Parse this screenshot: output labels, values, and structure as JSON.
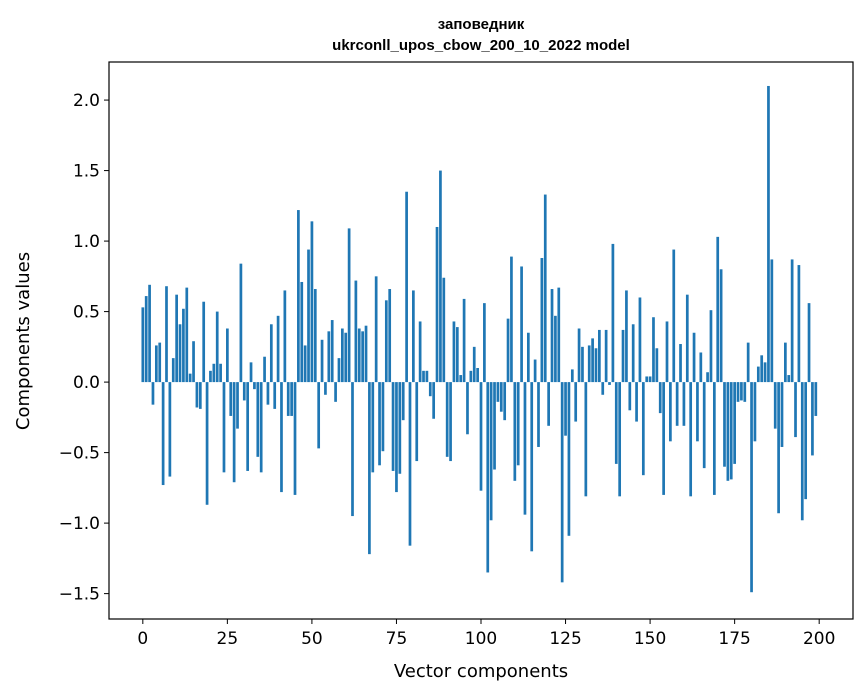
{
  "chart_data": {
    "type": "bar",
    "title": "заповедник",
    "subtitle": "ukrconll_upos_cbow_200_10_2022 model",
    "xlabel": "Vector components",
    "ylabel": "Components values",
    "xlim": [
      -10,
      210
    ],
    "ylim": [
      -1.68,
      2.27
    ],
    "xticks": [
      0,
      25,
      50,
      75,
      100,
      125,
      150,
      175,
      200
    ],
    "yticks": [
      -1.5,
      -1.0,
      -0.5,
      0.0,
      0.5,
      1.0,
      1.5,
      2.0
    ],
    "xtick_labels": [
      "0",
      "25",
      "50",
      "75",
      "100",
      "125",
      "150",
      "175",
      "200"
    ],
    "ytick_labels": [
      "−1.5",
      "−1.0",
      "−0.5",
      "0.0",
      "0.5",
      "1.0",
      "1.5",
      "2.0"
    ],
    "bar_color": "#1f77b4",
    "values": [
      0.53,
      0.61,
      0.69,
      -0.16,
      0.26,
      0.28,
      -0.73,
      0.68,
      -0.67,
      0.17,
      0.62,
      0.41,
      0.52,
      0.67,
      0.06,
      0.29,
      -0.18,
      -0.19,
      0.57,
      -0.87,
      0.08,
      0.13,
      0.5,
      0.13,
      -0.64,
      0.38,
      -0.24,
      -0.71,
      -0.33,
      0.84,
      -0.13,
      -0.63,
      0.14,
      -0.05,
      -0.53,
      -0.64,
      0.18,
      -0.16,
      0.41,
      -0.19,
      0.47,
      -0.78,
      0.65,
      -0.24,
      -0.24,
      -0.8,
      1.22,
      0.71,
      0.26,
      0.94,
      1.14,
      0.66,
      -0.47,
      0.3,
      -0.09,
      0.36,
      0.44,
      -0.14,
      0.17,
      0.38,
      0.35,
      1.09,
      -0.95,
      0.72,
      0.38,
      0.36,
      0.4,
      -1.22,
      -0.64,
      0.75,
      -0.59,
      -0.49,
      0.58,
      0.66,
      -0.63,
      -0.78,
      -0.65,
      -0.27,
      1.35,
      -1.16,
      0.65,
      -0.56,
      0.43,
      0.08,
      0.08,
      -0.1,
      -0.26,
      1.1,
      1.5,
      0.74,
      -0.53,
      -0.56,
      0.43,
      0.39,
      0.05,
      0.59,
      -0.37,
      0.08,
      0.25,
      0.1,
      -0.77,
      0.56,
      -1.35,
      -0.98,
      -0.62,
      -0.14,
      -0.21,
      -0.27,
      0.45,
      0.89,
      -0.7,
      -0.59,
      0.82,
      -0.94,
      0.35,
      -1.2,
      0.16,
      -0.46,
      0.88,
      1.33,
      -0.31,
      0.66,
      0.47,
      0.67,
      -1.42,
      -0.38,
      -1.09,
      0.09,
      -0.28,
      0.38,
      0.25,
      -0.81,
      0.26,
      0.31,
      0.24,
      0.37,
      -0.09,
      0.37,
      -0.02,
      0.98,
      -0.58,
      -0.81,
      0.37,
      0.65,
      -0.2,
      0.41,
      -0.28,
      0.6,
      -0.66,
      0.04,
      0.04,
      0.46,
      0.24,
      -0.22,
      -0.8,
      0.43,
      -0.42,
      0.94,
      -0.31,
      0.27,
      -0.31,
      0.62,
      -0.81,
      0.35,
      -0.42,
      0.21,
      -0.61,
      0.07,
      0.51,
      -0.8,
      1.03,
      0.8,
      -0.6,
      -0.7,
      -0.69,
      -0.58,
      -0.14,
      -0.13,
      -0.14,
      0.28,
      -1.49,
      -0.42,
      0.11,
      0.19,
      0.14,
      2.1,
      0.87,
      -0.33,
      -0.93,
      -0.46,
      0.28,
      0.05,
      0.87,
      -0.39,
      0.83,
      -0.98,
      -0.83,
      0.56,
      -0.52,
      -0.24
    ]
  }
}
